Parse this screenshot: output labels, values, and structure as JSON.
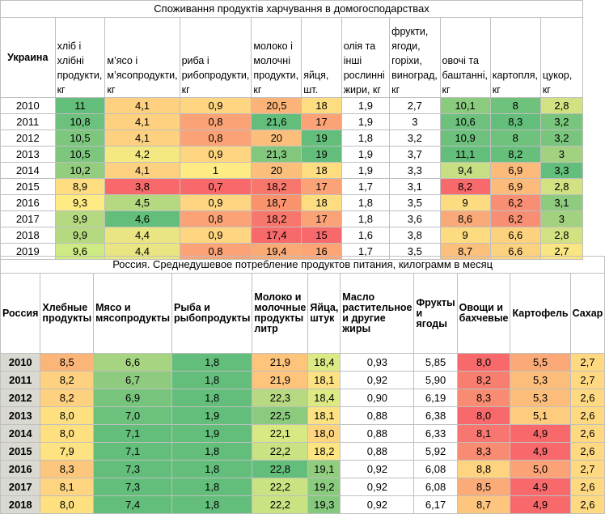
{
  "ukraine": {
    "title": "Споживання продуктів харчування в домогосподарствах",
    "country": "Украина",
    "columns": [
      "хліб і хлібні продукти, кг",
      "м’ясо і м’ясопродукти, кг",
      "риба і рибопродукти, кг",
      "молоко і молочні продукти, кг",
      "яйця, шт.",
      "олія та інші рослинні жири, кг",
      "фрукти, ягоди, горіхи, виноград, кг",
      "овочі та баштанні, кг",
      "картопля, кг",
      "цукор, кг"
    ],
    "rows": [
      {
        "year": "2010",
        "values": [
          "11",
          "4,1",
          "0,9",
          "20,5",
          "18",
          "1,9",
          "2,7",
          "10,1",
          "8",
          "2,8"
        ]
      },
      {
        "year": "2011",
        "values": [
          "10,8",
          "4,1",
          "0,8",
          "21,6",
          "17",
          "1,9",
          "3",
          "10,6",
          "8,3",
          "3,2"
        ]
      },
      {
        "year": "2012",
        "values": [
          "10,5",
          "4,1",
          "0,8",
          "20",
          "19",
          "1,8",
          "3,2",
          "10,9",
          "8",
          "3,2"
        ]
      },
      {
        "year": "2013",
        "values": [
          "10,5",
          "4,2",
          "0,9",
          "21,3",
          "19",
          "1,9",
          "3,7",
          "11,1",
          "8,2",
          "3"
        ]
      },
      {
        "year": "2014",
        "values": [
          "10,2",
          "4,1",
          "1",
          "20",
          "18",
          "1,9",
          "3,3",
          "9,4",
          "6,9",
          "3,3"
        ]
      },
      {
        "year": "2015",
        "values": [
          "8,9",
          "3,8",
          "0,7",
          "18,2",
          "17",
          "1,7",
          "3,1",
          "8,2",
          "6,9",
          "2,8"
        ]
      },
      {
        "year": "2016",
        "values": [
          "9,3",
          "4,5",
          "0,9",
          "18,7",
          "18",
          "1,8",
          "3,5",
          "9",
          "6,2",
          "3,1"
        ]
      },
      {
        "year": "2017",
        "values": [
          "9,9",
          "4,6",
          "0,8",
          "18,2",
          "17",
          "1,8",
          "3,6",
          "8,6",
          "6,2",
          "3"
        ]
      },
      {
        "year": "2018",
        "values": [
          "9,9",
          "4,4",
          "0,9",
          "17,4",
          "15",
          "1,6",
          "3,8",
          "9",
          "6,6",
          "2,8"
        ]
      },
      {
        "year": "2019",
        "values": [
          "9,6",
          "4,4",
          "0,8",
          "19,4",
          "16",
          "1,7",
          "3,5",
          "8,7",
          "6,6",
          "2,7"
        ]
      }
    ],
    "colors": [
      [
        "#63be7b",
        "#fdd17f",
        "#fed580",
        "#fcb378",
        "#fedd81",
        "#ffffff",
        "#ffffff",
        "#8acb7e",
        "#6ec27c",
        "#d2e282"
      ],
      [
        "#6cc17c",
        "#fdd17f",
        "#fba276",
        "#63be7b",
        "#fba276",
        "#ffffff",
        "#ffffff",
        "#6dc17c",
        "#63be7b",
        "#79c57d"
      ],
      [
        "#7dc67d",
        "#fdd17f",
        "#fba276",
        "#fcbf7b",
        "#63be7b",
        "#ffffff",
        "#ffffff",
        "#6dc17c",
        "#6ec27c",
        "#79c57d"
      ],
      [
        "#7dc67d",
        "#f4e883",
        "#fed580",
        "#82c77d",
        "#63be7b",
        "#ffffff",
        "#ffffff",
        "#63be7b",
        "#67bf7c",
        "#a2d27f"
      ],
      [
        "#95cd7e",
        "#fdd17f",
        "#ffeb84",
        "#fcbf7b",
        "#fedd81",
        "#ffffff",
        "#ffffff",
        "#c7df82",
        "#fcbb7a",
        "#63be7b"
      ],
      [
        "#fedd81",
        "#f8696b",
        "#f8696b",
        "#f8776d",
        "#fba276",
        "#ffffff",
        "#ffffff",
        "#f8696b",
        "#fcbb7a",
        "#d2e282"
      ],
      [
        "#feeb84",
        "#b4d981",
        "#fed580",
        "#f9936e",
        "#fedd81",
        "#ffffff",
        "#ffffff",
        "#fddc81",
        "#f88f74",
        "#8ecb7e"
      ],
      [
        "#b4d981",
        "#63be7b",
        "#fba276",
        "#f8776d",
        "#fba276",
        "#ffffff",
        "#ffffff",
        "#faaa78",
        "#f88f74",
        "#a2d27f"
      ],
      [
        "#b4d981",
        "#eae583",
        "#fed580",
        "#f8696b",
        "#f8696b",
        "#ffffff",
        "#ffffff",
        "#fddc81",
        "#fcd27f",
        "#d2e282"
      ],
      [
        "#ceea83",
        "#eae583",
        "#fba276",
        "#f9aa75",
        "#fca474",
        "#ffffff",
        "#ffffff",
        "#fbc07c",
        "#fcd27f",
        "#f9e683"
      ]
    ]
  },
  "russia": {
    "title": "Россия. Среднедушевое потребление продуктов питания, килограмм в месяц",
    "country": "Россия",
    "columns": [
      "Хлебные продукты",
      "Мясо и мясопродукты",
      "Рыба и рыбопродукты",
      "Молоко и молочные продукты литр",
      "Яйца, штук",
      "Масло растительное и другие жиры",
      "Фрукты и ягоды",
      "Овощи и бахчевые",
      "Картофель",
      "Сахар"
    ],
    "rows": [
      {
        "year": "2010",
        "values": [
          "8,5",
          "6,6",
          "1,8",
          "21,9",
          "18,4",
          "0,93",
          "5,85",
          "8,0",
          "5,5",
          "2,7"
        ]
      },
      {
        "year": "2011",
        "values": [
          "8,2",
          "6,7",
          "1,8",
          "21,9",
          "18,1",
          "0,92",
          "5,90",
          "8,2",
          "5,3",
          "2,7"
        ]
      },
      {
        "year": "2012",
        "values": [
          "8,2",
          "6,9",
          "1,8",
          "22,3",
          "18,4",
          "0,90",
          "6,19",
          "8,3",
          "5,3",
          "2,6"
        ]
      },
      {
        "year": "2013",
        "values": [
          "8,0",
          "7,0",
          "1,9",
          "22,5",
          "18,1",
          "0,88",
          "6,38",
          "8,0",
          "5,1",
          "2,6"
        ]
      },
      {
        "year": "2014",
        "values": [
          "8,0",
          "7,1",
          "1,9",
          "22,1",
          "18,0",
          "0,88",
          "6,33",
          "8,1",
          "4,9",
          "2,6"
        ]
      },
      {
        "year": "2015",
        "values": [
          "7,9",
          "7,1",
          "1,8",
          "22,2",
          "18,2",
          "0,88",
          "5,92",
          "8,3",
          "4,9",
          "2,6"
        ]
      },
      {
        "year": "2016",
        "values": [
          "8,3",
          "7,3",
          "1,8",
          "22,8",
          "19,1",
          "0,92",
          "6,08",
          "8,8",
          "5,0",
          "2,7"
        ]
      },
      {
        "year": "2017",
        "values": [
          "8,1",
          "7,3",
          "1,8",
          "22,2",
          "19,2",
          "0,92",
          "6,08",
          "8,5",
          "4,9",
          "2,6"
        ]
      },
      {
        "year": "2018",
        "values": [
          "8,0",
          "7,4",
          "1,8",
          "22,2",
          "19,3",
          "0,92",
          "6,17",
          "8,7",
          "4,9",
          "2,6"
        ]
      }
    ],
    "colors": [
      [
        "#fcb578",
        "#a6d480",
        "#63be7b",
        "#fec47b",
        "#ddea84",
        "#ffffff",
        "#ffffff",
        "#f8696b",
        "#fbaa77",
        "#fed981"
      ],
      [
        "#fed180",
        "#8ecb7e",
        "#63be7b",
        "#fec47b",
        "#fce282",
        "#ffffff",
        "#ffffff",
        "#f87f70",
        "#fcbd7b",
        "#fed981"
      ],
      [
        "#fed180",
        "#77c47d",
        "#63be7b",
        "#b7d982",
        "#ddea84",
        "#ffffff",
        "#ffffff",
        "#f88c72",
        "#fcbd7b",
        "#fed981"
      ],
      [
        "#fee081",
        "#6cc17c",
        "#63be7b",
        "#8ccb7e",
        "#fce282",
        "#ffffff",
        "#ffffff",
        "#f8696b",
        "#fdcc7e",
        "#fed981"
      ],
      [
        "#fee081",
        "#63be7b",
        "#63be7b",
        "#d8e883",
        "#fdd57f",
        "#ffffff",
        "#ffffff",
        "#f87670",
        "#f8696b",
        "#fed981"
      ],
      [
        "#fee382",
        "#63be7b",
        "#63be7b",
        "#c9e282",
        "#fde682",
        "#ffffff",
        "#ffffff",
        "#f88c72",
        "#f8696b",
        "#fed981"
      ],
      [
        "#fcc77c",
        "#63be7b",
        "#63be7b",
        "#63be7b",
        "#91cd7e",
        "#ffffff",
        "#ffffff",
        "#fed480",
        "#fba276",
        "#fed981"
      ],
      [
        "#fed480",
        "#63be7b",
        "#63be7b",
        "#c9e282",
        "#8bcb7e",
        "#ffffff",
        "#ffffff",
        "#fbab77",
        "#f8696b",
        "#fed981"
      ],
      [
        "#fee081",
        "#63be7b",
        "#63be7b",
        "#c9e282",
        "#85c97e",
        "#ffffff",
        "#ffffff",
        "#fdc57d",
        "#f8696b",
        "#fed981"
      ]
    ]
  }
}
